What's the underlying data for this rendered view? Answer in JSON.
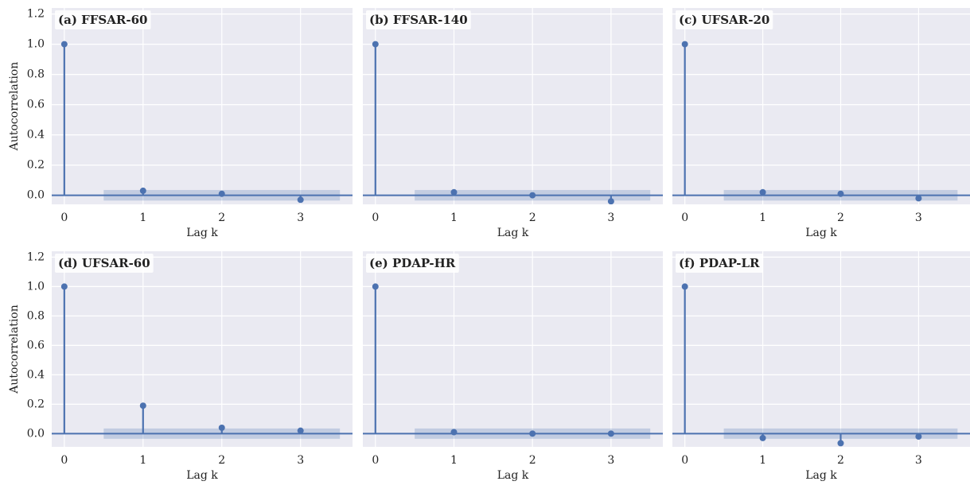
{
  "chart_data": [
    {
      "type": "stem",
      "title": "(a) FFSAR-60",
      "xlabel": "Lag k",
      "ylabel": "Autocorrelation",
      "show_yticklabels": true,
      "x": [
        0,
        1,
        2,
        3
      ],
      "values": [
        1,
        0.03,
        0.01,
        -0.03
      ],
      "color": "#4c72b0",
      "xlim": [
        -0.16,
        3.66
      ],
      "xticks": [
        0,
        1,
        2,
        3
      ],
      "ylim": [
        -0.06,
        1.24
      ],
      "yticks": [
        {
          "value": 0,
          "label": "0.0"
        },
        0.2,
        0.4,
        0.6,
        0.8,
        {
          "value": 1,
          "label": "1.0"
        },
        1.2
      ],
      "confidence_band": {
        "xlim": [
          0.5,
          3.5
        ],
        "ylim": [
          -0.035,
          0.035
        ]
      },
      "grid": true
    },
    {
      "type": "stem",
      "title": "(b) FFSAR-140",
      "xlabel": "Lag k",
      "show_yticklabels": false,
      "x": [
        0,
        1,
        2,
        3
      ],
      "values": [
        1,
        0.02,
        0.0,
        -0.04
      ],
      "color": "#4c72b0",
      "xlim": [
        -0.16,
        3.66
      ],
      "xticks": [
        0,
        1,
        2,
        3
      ],
      "ylim": [
        -0.06,
        1.24
      ],
      "yticks": [
        {
          "value": 0,
          "label": "0.0"
        },
        0.2,
        0.4,
        0.6,
        0.8,
        {
          "value": 1,
          "label": "1.0"
        },
        1.2
      ],
      "confidence_band": {
        "xlim": [
          0.5,
          3.5
        ],
        "ylim": [
          -0.035,
          0.035
        ]
      },
      "grid": true
    },
    {
      "type": "stem",
      "title": "(c) UFSAR-20",
      "xlabel": "Lag k",
      "show_yticklabels": false,
      "x": [
        0,
        1,
        2,
        3
      ],
      "values": [
        1,
        0.02,
        0.01,
        -0.02
      ],
      "color": "#4c72b0",
      "xlim": [
        -0.16,
        3.66
      ],
      "xticks": [
        0,
        1,
        2,
        3
      ],
      "ylim": [
        -0.06,
        1.24
      ],
      "yticks": [
        {
          "value": 0,
          "label": "0.0"
        },
        0.2,
        0.4,
        0.6,
        0.8,
        {
          "value": 1,
          "label": "1.0"
        },
        1.2
      ],
      "confidence_band": {
        "xlim": [
          0.5,
          3.5
        ],
        "ylim": [
          -0.035,
          0.035
        ]
      },
      "grid": true
    },
    {
      "type": "stem",
      "title": "(d) UFSAR-60",
      "xlabel": "Lag k",
      "ylabel": "Autocorrelation",
      "show_yticklabels": true,
      "x": [
        0,
        1,
        2,
        3
      ],
      "values": [
        1,
        0.19,
        0.04,
        0.02
      ],
      "color": "#4c72b0",
      "xlim": [
        -0.16,
        3.66
      ],
      "xticks": [
        0,
        1,
        2,
        3
      ],
      "ylim": [
        -0.09,
        1.24
      ],
      "yticks": [
        {
          "value": 0,
          "label": "0.0"
        },
        0.2,
        0.4,
        0.6,
        0.8,
        {
          "value": 1,
          "label": "1.0"
        },
        1.2
      ],
      "confidence_band": {
        "xlim": [
          0.5,
          3.5
        ],
        "ylim": [
          -0.035,
          0.035
        ]
      },
      "grid": true
    },
    {
      "type": "stem",
      "title": "(e) PDAP-HR",
      "xlabel": "Lag k",
      "show_yticklabels": false,
      "x": [
        0,
        1,
        2,
        3
      ],
      "values": [
        1,
        0.01,
        0.0,
        0.0
      ],
      "color": "#4c72b0",
      "xlim": [
        -0.16,
        3.66
      ],
      "xticks": [
        0,
        1,
        2,
        3
      ],
      "ylim": [
        -0.09,
        1.24
      ],
      "yticks": [
        {
          "value": 0,
          "label": "0.0"
        },
        0.2,
        0.4,
        0.6,
        0.8,
        {
          "value": 1,
          "label": "1.0"
        },
        1.2
      ],
      "confidence_band": {
        "xlim": [
          0.5,
          3.5
        ],
        "ylim": [
          -0.035,
          0.035
        ]
      },
      "grid": true
    },
    {
      "type": "stem",
      "title": "(f) PDAP-LR",
      "xlabel": "Lag k",
      "show_yticklabels": false,
      "x": [
        0,
        1,
        2,
        3
      ],
      "values": [
        1,
        -0.03,
        -0.065,
        -0.02
      ],
      "color": "#4c72b0",
      "xlim": [
        -0.16,
        3.66
      ],
      "xticks": [
        0,
        1,
        2,
        3
      ],
      "ylim": [
        -0.09,
        1.24
      ],
      "yticks": [
        {
          "value": 0,
          "label": "0.0"
        },
        0.2,
        0.4,
        0.6,
        0.8,
        {
          "value": 1,
          "label": "1.0"
        },
        1.2
      ],
      "confidence_band": {
        "xlim": [
          0.5,
          3.5
        ],
        "ylim": [
          -0.035,
          0.035
        ]
      },
      "grid": true
    }
  ]
}
